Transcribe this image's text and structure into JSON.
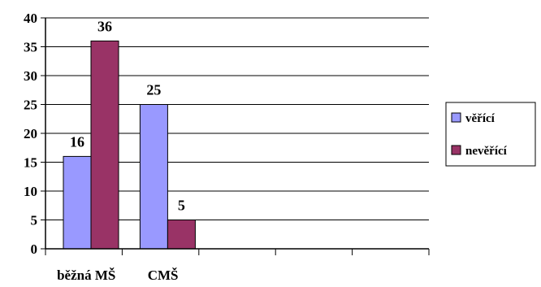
{
  "chart_data": {
    "type": "bar",
    "categories": [
      "běžná MŠ",
      "CMŠ",
      "",
      "",
      ""
    ],
    "series": [
      {
        "name": "věřící",
        "values": [
          16,
          25,
          null,
          null,
          null
        ],
        "color": "#9999ff"
      },
      {
        "name": "nevěřící",
        "values": [
          36,
          5,
          null,
          null,
          null
        ],
        "color": "#993366"
      }
    ],
    "data_labels": [
      [
        "16",
        "25",
        "",
        "",
        ""
      ],
      [
        "36",
        "5",
        "",
        "",
        ""
      ]
    ],
    "yticks": [
      "0",
      "5",
      "10",
      "15",
      "20",
      "25",
      "30",
      "35",
      "40"
    ],
    "ylim": [
      0,
      40
    ],
    "grid": true,
    "legend": "right",
    "title": "",
    "xlabel": "",
    "ylabel": ""
  }
}
